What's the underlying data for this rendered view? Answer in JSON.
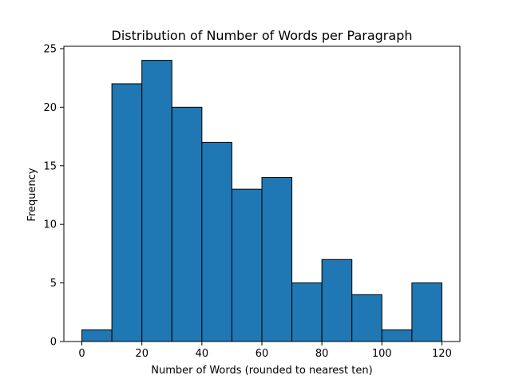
{
  "chart_data": {
    "type": "bar",
    "title": "Distribution of Number of Words per Paragraph",
    "xlabel": "Number of Words (rounded to nearest ten)",
    "ylabel": "Frequency",
    "bin_edges": [
      0,
      10,
      20,
      30,
      40,
      50,
      60,
      70,
      80,
      90,
      100,
      110,
      120
    ],
    "values": [
      1,
      22,
      24,
      20,
      17,
      13,
      14,
      5,
      7,
      4,
      1,
      5
    ],
    "xlim": [
      -6,
      126
    ],
    "ylim": [
      0,
      25.2
    ],
    "xticks": [
      0,
      20,
      40,
      60,
      80,
      100,
      120
    ],
    "yticks": [
      0,
      5,
      10,
      15,
      20,
      25
    ],
    "bar_color": "#1f77b4",
    "edge_color": "#000000",
    "grid": false
  }
}
